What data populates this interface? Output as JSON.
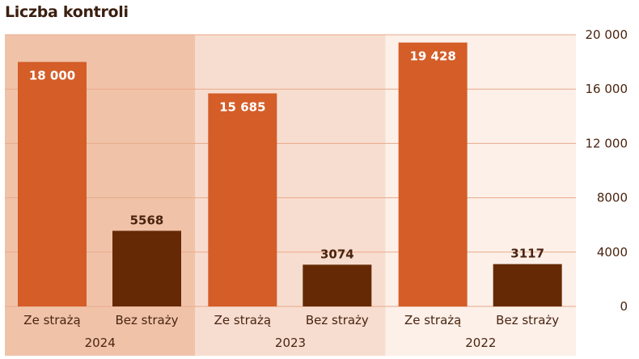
{
  "chart_data": {
    "type": "bar",
    "title": "Liczba kontroli",
    "y_ticks": [
      "0",
      "4000",
      "8000",
      "12 000",
      "16 000",
      "20 000"
    ],
    "ylim": [
      0,
      20000
    ],
    "y_axis_side": "right",
    "grid": true,
    "groups": [
      {
        "label": "2024",
        "background": "#f0c3a9",
        "bars": [
          {
            "category": "Ze strażą",
            "value": 18000,
            "label": "18 000"
          },
          {
            "category": "Bez straży",
            "value": 5568,
            "label": "5568"
          }
        ]
      },
      {
        "label": "2023",
        "background": "#f7ddd0",
        "bars": [
          {
            "category": "Ze strażą",
            "value": 15685,
            "label": "15 685"
          },
          {
            "category": "Bez straży",
            "value": 3074,
            "label": "3074"
          }
        ]
      },
      {
        "label": "2022",
        "background": "#fcf0e9",
        "bars": [
          {
            "category": "Ze strażą",
            "value": 19428,
            "label": "19 428"
          },
          {
            "category": "Bez straży",
            "value": 3117,
            "label": "3117"
          }
        ]
      }
    ],
    "colors": {
      "Ze strażą": "#d45d28",
      "Bez straży": "#652a05",
      "gridline": "#e8a98a",
      "text": "#4a2410",
      "value_on_bar": "#ffffff",
      "value_above_bar": "#4a2410"
    }
  }
}
